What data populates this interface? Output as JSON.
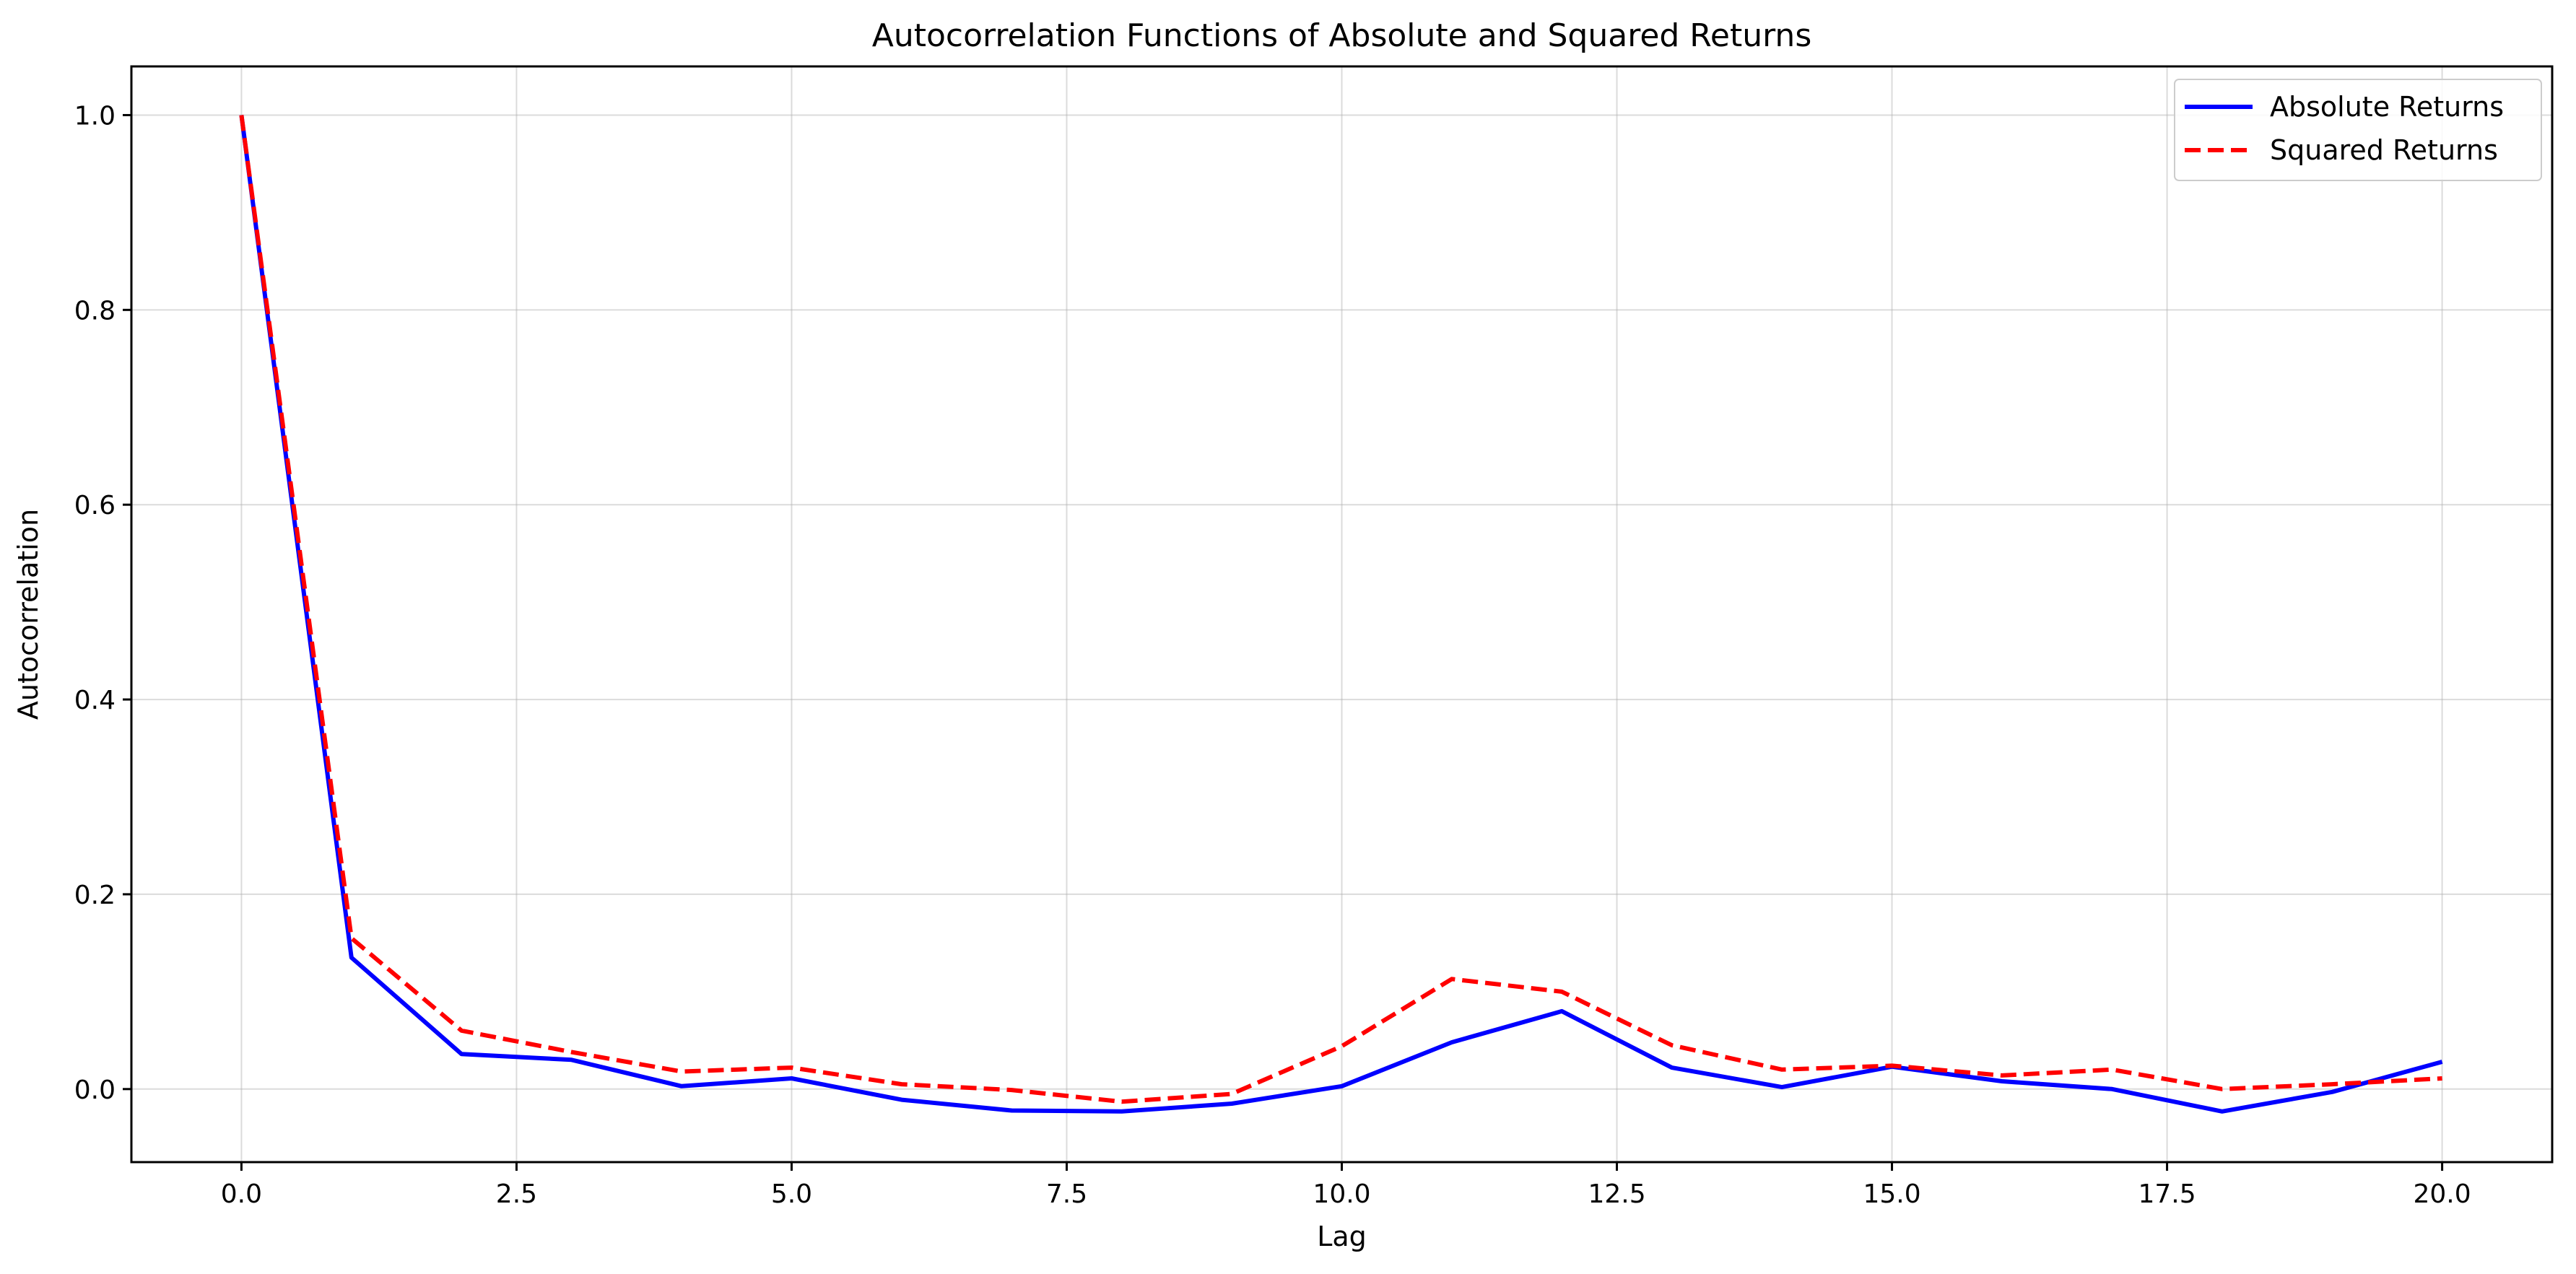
{
  "chart_data": {
    "type": "line",
    "title": "Autocorrelation Functions of Absolute and Squared Returns",
    "xlabel": "Lag",
    "ylabel": "Autocorrelation",
    "xlim": [
      -1,
      21
    ],
    "ylim": [
      -0.075,
      1.05
    ],
    "xticks": [
      0.0,
      2.5,
      5.0,
      7.5,
      10.0,
      12.5,
      15.0,
      17.5,
      20.0
    ],
    "xtick_labels": [
      "0.0",
      "2.5",
      "5.0",
      "7.5",
      "10.0",
      "12.5",
      "15.0",
      "17.5",
      "20.0"
    ],
    "yticks": [
      0.0,
      0.2,
      0.4,
      0.6,
      0.8,
      1.0
    ],
    "ytick_labels": [
      "0.0",
      "0.2",
      "0.4",
      "0.6",
      "0.8",
      "1.0"
    ],
    "grid": true,
    "legend_position": "top-right",
    "x": [
      0,
      1,
      2,
      3,
      4,
      5,
      6,
      7,
      8,
      9,
      10,
      11,
      12,
      13,
      14,
      15,
      16,
      17,
      18,
      19,
      20
    ],
    "series": [
      {
        "name": "Absolute Returns",
        "color": "#0000ff",
        "style": "solid",
        "values": [
          1.0,
          0.135,
          0.036,
          0.03,
          0.003,
          0.011,
          -0.011,
          -0.022,
          -0.023,
          -0.015,
          0.003,
          0.048,
          0.08,
          0.022,
          0.002,
          0.023,
          0.008,
          0.0,
          -0.023,
          -0.003,
          0.028
        ]
      },
      {
        "name": "Squared Returns",
        "color": "#ff0000",
        "style": "dashed",
        "values": [
          1.0,
          0.155,
          0.06,
          0.038,
          0.018,
          0.022,
          0.005,
          -0.001,
          -0.013,
          -0.005,
          0.044,
          0.113,
          0.1,
          0.045,
          0.02,
          0.024,
          0.014,
          0.02,
          0.0,
          0.005,
          0.011
        ]
      }
    ]
  }
}
